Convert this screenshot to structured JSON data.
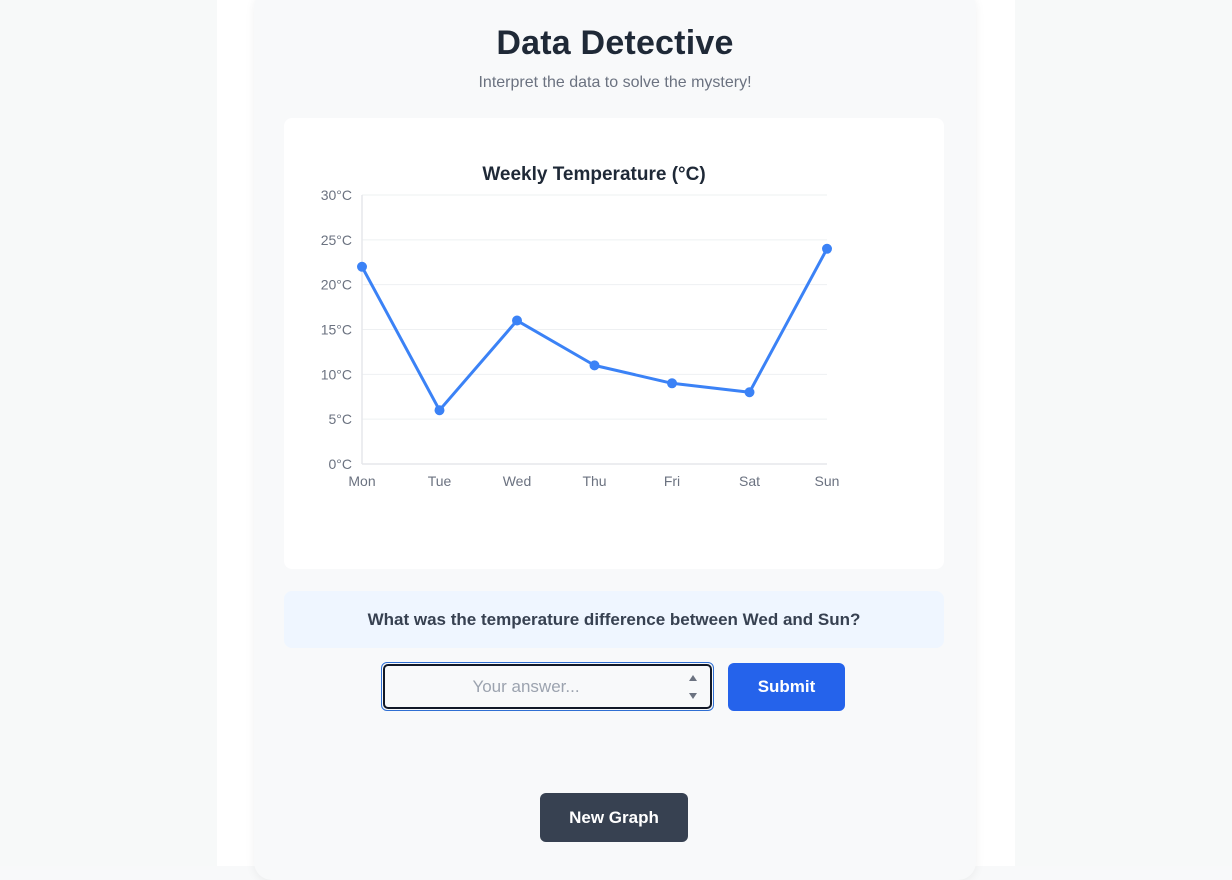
{
  "app": {
    "title": "Data Detective",
    "subtitle": "Interpret the data to solve the mystery!"
  },
  "chart_data": {
    "type": "line",
    "title": "Weekly Temperature (°C)",
    "xlabel": "",
    "ylabel": "",
    "categories": [
      "Mon",
      "Tue",
      "Wed",
      "Thu",
      "Fri",
      "Sat",
      "Sun"
    ],
    "series": [
      {
        "values": [
          22,
          6,
          16,
          11,
          9,
          8,
          24
        ]
      }
    ],
    "ylim": [
      0,
      30
    ],
    "yticks": [
      0,
      5,
      10,
      15,
      20,
      25,
      30
    ],
    "ytick_labels": [
      "0°C",
      "5°C",
      "10°C",
      "15°C",
      "20°C",
      "25°C",
      "30°C"
    ],
    "grid": true,
    "legend": "none",
    "line_color": "#3b82f6"
  },
  "question": {
    "text": "What was the temperature difference between Wed and Sun?"
  },
  "answer": {
    "value": "",
    "placeholder": "Your answer..."
  },
  "buttons": {
    "submit_label": "Submit",
    "new_graph_label": "New Graph"
  },
  "colors": {
    "primary": "#2563eb",
    "dark_button": "#374151",
    "question_bg": "#eff6ff"
  }
}
